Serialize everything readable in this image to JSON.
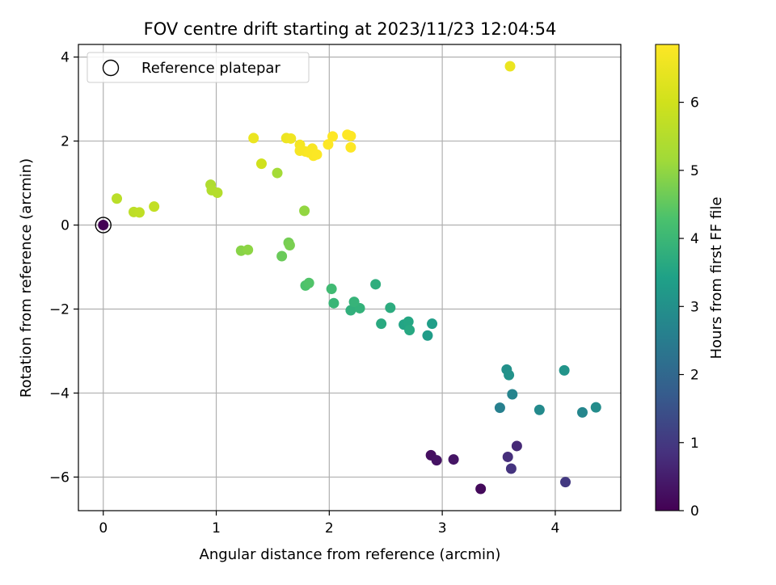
{
  "chart_data": {
    "type": "scatter",
    "title": "FOV centre drift starting at 2023/11/23 12:04:54",
    "xlabel": "Angular distance from reference (arcmin)",
    "ylabel": "Rotation from reference (arcmin)",
    "xlim": [
      -0.22,
      4.58
    ],
    "ylim": [
      -6.8,
      4.3
    ],
    "xticks": [
      0,
      1,
      2,
      3,
      4
    ],
    "xtick_labels": [
      "0",
      "1",
      "2",
      "3",
      "4"
    ],
    "yticks": [
      4,
      2,
      0,
      -2,
      -4,
      -6
    ],
    "ytick_labels": [
      "4",
      "2",
      "0",
      "−2",
      "−4",
      "−6"
    ],
    "grid": true,
    "legend": {
      "placement": "top-left",
      "entries": [
        "Reference platepar"
      ]
    },
    "reference_point": {
      "x": 0,
      "y": 0,
      "label": "Reference platepar"
    },
    "colorbar": {
      "label": "Hours from first FF file",
      "range": [
        0,
        6.85
      ],
      "ticks": [
        0,
        1,
        2,
        3,
        4,
        5,
        6
      ],
      "tick_labels": [
        "0",
        "1",
        "2",
        "3",
        "4",
        "5",
        "6"
      ],
      "colormap": "viridis"
    },
    "points": [
      {
        "x": 0.0,
        "y": 0.0,
        "c": 0.0
      },
      {
        "x": 3.34,
        "y": -6.28,
        "c": 0.15
      },
      {
        "x": 2.9,
        "y": -5.48,
        "c": 0.25
      },
      {
        "x": 2.95,
        "y": -5.6,
        "c": 0.3
      },
      {
        "x": 3.1,
        "y": -5.58,
        "c": 0.35
      },
      {
        "x": 3.66,
        "y": -5.26,
        "c": 0.7
      },
      {
        "x": 3.58,
        "y": -5.52,
        "c": 0.8
      },
      {
        "x": 3.61,
        "y": -5.8,
        "c": 0.9
      },
      {
        "x": 4.09,
        "y": -6.12,
        "c": 1.0
      },
      {
        "x": 3.51,
        "y": -4.35,
        "c": 2.6
      },
      {
        "x": 3.62,
        "y": -4.03,
        "c": 2.7
      },
      {
        "x": 4.24,
        "y": -4.46,
        "c": 2.75
      },
      {
        "x": 3.86,
        "y": -4.4,
        "c": 2.85
      },
      {
        "x": 4.36,
        "y": -4.34,
        "c": 2.9
      },
      {
        "x": 3.57,
        "y": -3.44,
        "c": 3.0
      },
      {
        "x": 3.59,
        "y": -3.57,
        "c": 3.05
      },
      {
        "x": 4.08,
        "y": -3.46,
        "c": 3.1
      },
      {
        "x": 2.87,
        "y": -2.63,
        "c": 3.3
      },
      {
        "x": 2.91,
        "y": -2.35,
        "c": 3.35
      },
      {
        "x": 2.66,
        "y": -2.37,
        "c": 3.5
      },
      {
        "x": 2.7,
        "y": -2.3,
        "c": 3.55
      },
      {
        "x": 2.71,
        "y": -2.5,
        "c": 3.6
      },
      {
        "x": 2.46,
        "y": -2.35,
        "c": 3.65
      },
      {
        "x": 2.54,
        "y": -1.97,
        "c": 3.7
      },
      {
        "x": 2.41,
        "y": -1.41,
        "c": 3.75
      },
      {
        "x": 2.19,
        "y": -2.03,
        "c": 3.8
      },
      {
        "x": 2.27,
        "y": -1.98,
        "c": 3.85
      },
      {
        "x": 2.22,
        "y": -1.83,
        "c": 3.9
      },
      {
        "x": 2.04,
        "y": -1.86,
        "c": 3.95
      },
      {
        "x": 2.02,
        "y": -1.52,
        "c": 4.1
      },
      {
        "x": 1.79,
        "y": -1.44,
        "c": 4.3
      },
      {
        "x": 1.82,
        "y": -1.38,
        "c": 4.35
      },
      {
        "x": 1.58,
        "y": -0.74,
        "c": 4.6
      },
      {
        "x": 1.64,
        "y": -0.42,
        "c": 4.7
      },
      {
        "x": 1.65,
        "y": -0.48,
        "c": 4.75
      },
      {
        "x": 1.22,
        "y": -0.61,
        "c": 4.9
      },
      {
        "x": 1.28,
        "y": -0.59,
        "c": 4.95
      },
      {
        "x": 1.78,
        "y": 0.34,
        "c": 5.0
      },
      {
        "x": 1.54,
        "y": 1.24,
        "c": 5.2
      },
      {
        "x": 0.95,
        "y": 0.96,
        "c": 5.4
      },
      {
        "x": 0.96,
        "y": 0.83,
        "c": 5.45
      },
      {
        "x": 1.01,
        "y": 0.77,
        "c": 5.5
      },
      {
        "x": 0.12,
        "y": 0.63,
        "c": 5.6
      },
      {
        "x": 0.27,
        "y": 0.31,
        "c": 5.65
      },
      {
        "x": 0.32,
        "y": 0.3,
        "c": 5.7
      },
      {
        "x": 0.45,
        "y": 0.44,
        "c": 5.75
      },
      {
        "x": 1.4,
        "y": 1.46,
        "c": 6.0
      },
      {
        "x": 1.33,
        "y": 2.07,
        "c": 6.5
      },
      {
        "x": 1.62,
        "y": 2.07,
        "c": 6.55
      },
      {
        "x": 1.66,
        "y": 2.06,
        "c": 6.6
      },
      {
        "x": 1.74,
        "y": 1.91,
        "c": 6.7
      },
      {
        "x": 1.74,
        "y": 1.77,
        "c": 6.72
      },
      {
        "x": 1.79,
        "y": 1.75,
        "c": 6.74
      },
      {
        "x": 1.85,
        "y": 1.82,
        "c": 6.76
      },
      {
        "x": 1.82,
        "y": 1.73,
        "c": 6.78
      },
      {
        "x": 1.86,
        "y": 1.65,
        "c": 6.8
      },
      {
        "x": 1.89,
        "y": 1.68,
        "c": 6.82
      },
      {
        "x": 1.99,
        "y": 1.92,
        "c": 6.84
      },
      {
        "x": 2.03,
        "y": 2.11,
        "c": 6.85
      },
      {
        "x": 2.16,
        "y": 2.15,
        "c": 6.85
      },
      {
        "x": 2.19,
        "y": 2.12,
        "c": 6.85
      },
      {
        "x": 2.19,
        "y": 1.85,
        "c": 6.85
      },
      {
        "x": 3.6,
        "y": 3.78,
        "c": 6.5
      }
    ]
  }
}
